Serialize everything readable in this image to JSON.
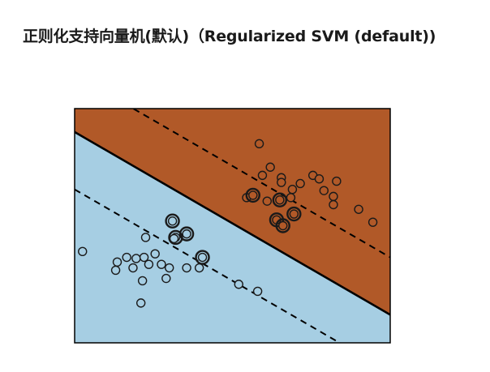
{
  "page": {
    "title": "正则化支持向量机(默认)（Regularized SVM (default))"
  },
  "colors": {
    "class_a_region": "#a6cee3",
    "class_b_region": "#b15928",
    "boundary_line": "#000000",
    "marker_edge": "#1a1a1a"
  },
  "chart_data": {
    "type": "scatter",
    "title": "",
    "xlabel": "",
    "ylabel": "",
    "xlim": [
      0,
      10
    ],
    "ylim": [
      0,
      10
    ],
    "ticks": "none",
    "grid": false,
    "legend": "none",
    "decision_boundary": {
      "slope": -0.78,
      "intercept": 9.0
    },
    "margin_offset": 2.45,
    "series": [
      {
        "class": "a",
        "points": [
          {
            "x": 0.25,
            "y": 3.9,
            "sv": false
          },
          {
            "x": 3.1,
            "y": 5.2,
            "sv": true
          },
          {
            "x": 3.2,
            "y": 4.5,
            "sv": true
          },
          {
            "x": 3.55,
            "y": 4.65,
            "sv": true
          },
          {
            "x": 4.05,
            "y": 3.65,
            "sv": true
          },
          {
            "x": 3.15,
            "y": 4.45,
            "sv": false
          },
          {
            "x": 2.55,
            "y": 3.8,
            "sv": false
          },
          {
            "x": 2.25,
            "y": 4.5,
            "sv": false
          },
          {
            "x": 1.35,
            "y": 3.45,
            "sv": false
          },
          {
            "x": 1.65,
            "y": 3.65,
            "sv": false
          },
          {
            "x": 1.95,
            "y": 3.6,
            "sv": false
          },
          {
            "x": 2.2,
            "y": 3.65,
            "sv": false
          },
          {
            "x": 1.3,
            "y": 3.1,
            "sv": false
          },
          {
            "x": 1.85,
            "y": 3.2,
            "sv": false
          },
          {
            "x": 2.35,
            "y": 3.35,
            "sv": false
          },
          {
            "x": 2.75,
            "y": 3.35,
            "sv": false
          },
          {
            "x": 3.0,
            "y": 3.2,
            "sv": false
          },
          {
            "x": 3.55,
            "y": 3.2,
            "sv": false
          },
          {
            "x": 3.95,
            "y": 3.2,
            "sv": false
          },
          {
            "x": 2.15,
            "y": 2.65,
            "sv": false
          },
          {
            "x": 2.9,
            "y": 2.75,
            "sv": false
          },
          {
            "x": 5.2,
            "y": 2.5,
            "sv": false
          },
          {
            "x": 5.8,
            "y": 2.2,
            "sv": false
          },
          {
            "x": 2.1,
            "y": 1.7,
            "sv": false
          }
        ]
      },
      {
        "class": "b",
        "points": [
          {
            "x": 5.85,
            "y": 8.5,
            "sv": false
          },
          {
            "x": 6.2,
            "y": 7.5,
            "sv": false
          },
          {
            "x": 5.95,
            "y": 7.15,
            "sv": false
          },
          {
            "x": 6.55,
            "y": 7.05,
            "sv": false
          },
          {
            "x": 6.55,
            "y": 6.85,
            "sv": false
          },
          {
            "x": 7.15,
            "y": 6.8,
            "sv": false
          },
          {
            "x": 7.55,
            "y": 7.15,
            "sv": false
          },
          {
            "x": 7.75,
            "y": 7.0,
            "sv": false
          },
          {
            "x": 8.3,
            "y": 6.9,
            "sv": false
          },
          {
            "x": 7.9,
            "y": 6.5,
            "sv": false
          },
          {
            "x": 6.1,
            "y": 6.05,
            "sv": false
          },
          {
            "x": 8.2,
            "y": 6.25,
            "sv": false
          },
          {
            "x": 6.9,
            "y": 6.55,
            "sv": false
          },
          {
            "x": 6.85,
            "y": 6.2,
            "sv": false
          },
          {
            "x": 5.45,
            "y": 6.2,
            "sv": false
          },
          {
            "x": 8.2,
            "y": 5.9,
            "sv": false
          },
          {
            "x": 9.0,
            "y": 5.7,
            "sv": false
          },
          {
            "x": 9.45,
            "y": 5.15,
            "sv": false
          },
          {
            "x": 5.65,
            "y": 6.3,
            "sv": true
          },
          {
            "x": 6.5,
            "y": 6.1,
            "sv": true
          },
          {
            "x": 6.95,
            "y": 5.5,
            "sv": true
          },
          {
            "x": 6.4,
            "y": 5.25,
            "sv": true
          },
          {
            "x": 6.6,
            "y": 5.0,
            "sv": true
          }
        ]
      }
    ]
  }
}
